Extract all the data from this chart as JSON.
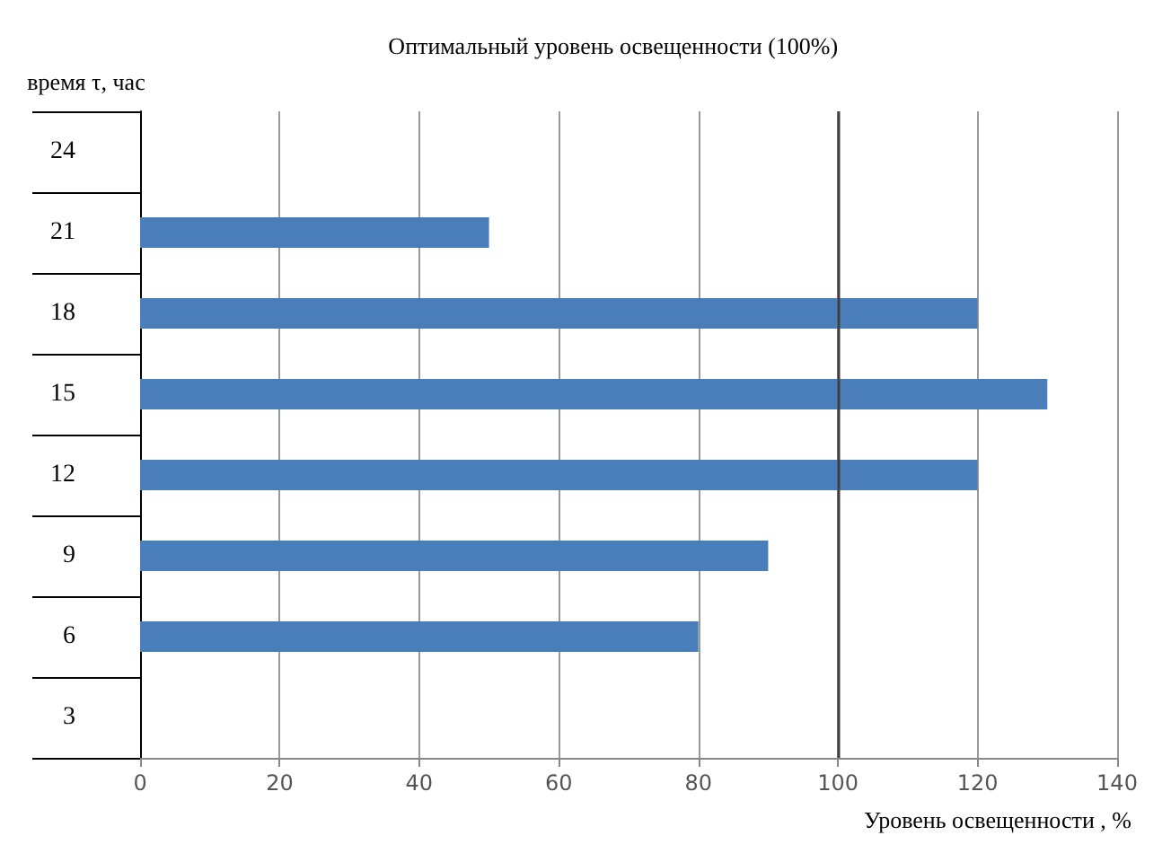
{
  "chart_data": {
    "type": "bar",
    "orientation": "horizontal",
    "xlabel": "Уровень освещенности , %",
    "ylabel": "время τ, час",
    "categories": [
      "24",
      "21",
      "18",
      "15",
      "12",
      "9",
      "6",
      "3"
    ],
    "values": [
      null,
      50,
      120,
      130,
      120,
      90,
      80,
      null
    ],
    "color": "#4a7ebb",
    "xlim": [
      0,
      140
    ],
    "xticks": [
      0,
      20,
      40,
      60,
      80,
      100,
      120,
      140
    ],
    "grid": "x",
    "ref_lines": [
      {
        "axis": "x",
        "value": 100,
        "label": "Оптимальный уровень освещенности (100%)",
        "color": "#404040"
      }
    ]
  }
}
